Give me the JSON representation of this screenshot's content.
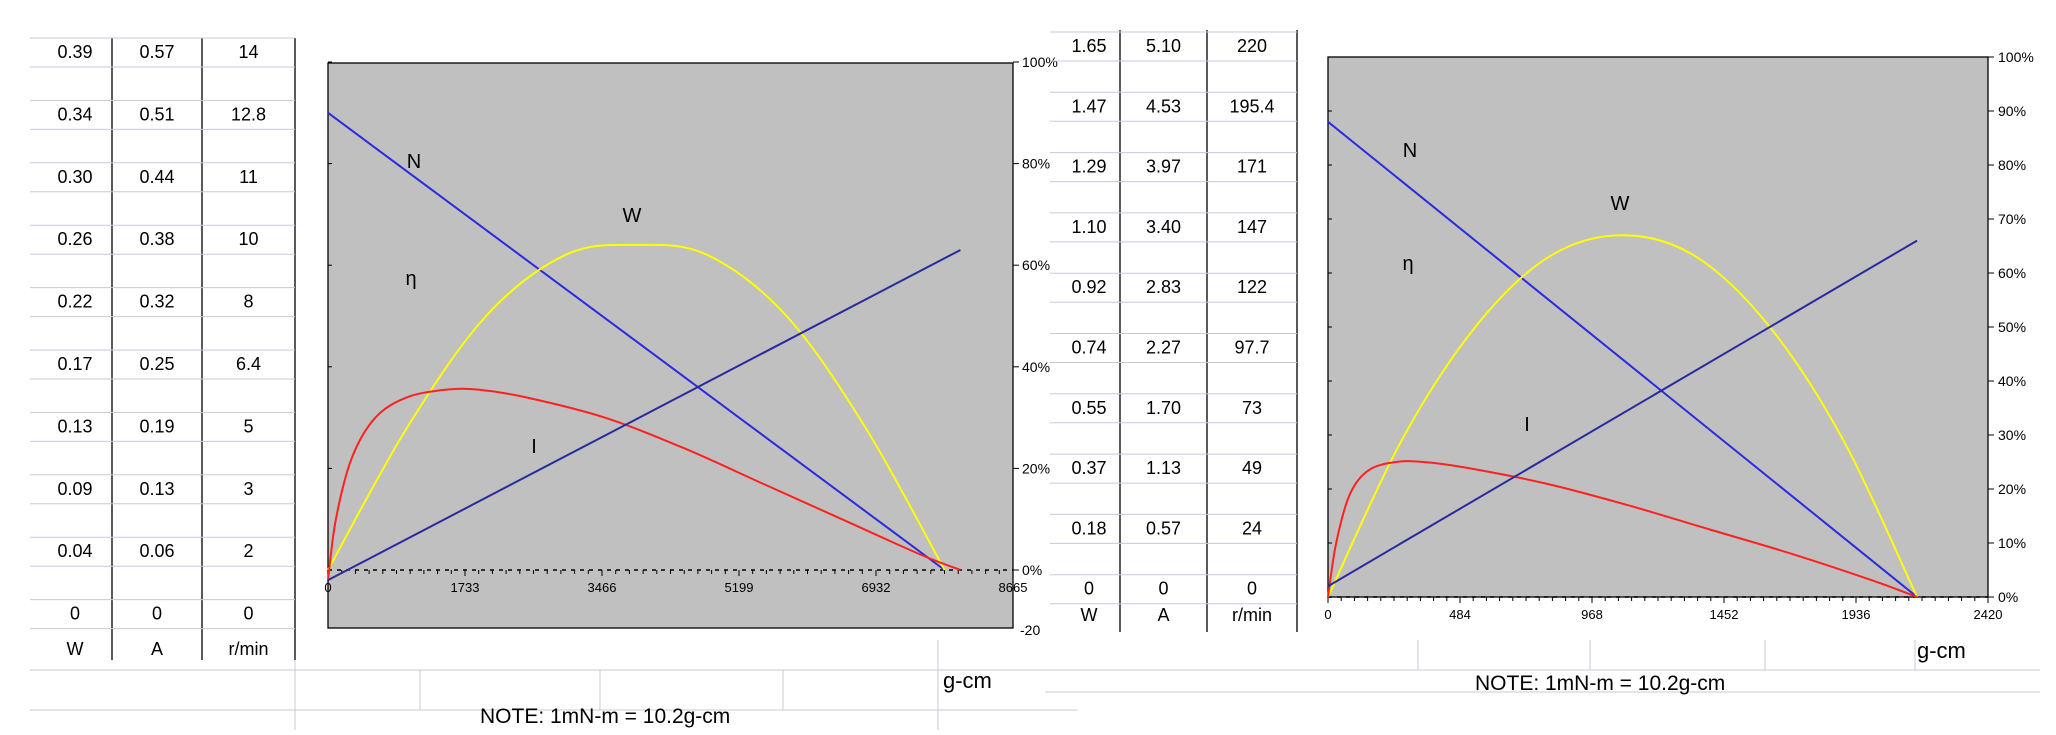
{
  "note": "NOTE: 1mN-m = 10.2g-cm",
  "chart_data": [
    {
      "type": "line",
      "table": {
        "headers": [
          "W",
          "A",
          "r/min"
        ],
        "rows": [
          [
            "0.39",
            "0.57",
            "14"
          ],
          [
            "0.34",
            "0.51",
            "12.8"
          ],
          [
            "0.30",
            "0.44",
            "11"
          ],
          [
            "0.26",
            "0.38",
            "10"
          ],
          [
            "0.22",
            "0.32",
            "8"
          ],
          [
            "0.17",
            "0.25",
            "6.4"
          ],
          [
            "0.13",
            "0.19",
            "5"
          ],
          [
            "0.09",
            "0.13",
            "3"
          ],
          [
            "0.04",
            "0.06",
            "2"
          ],
          [
            "0",
            "0",
            "0"
          ]
        ]
      },
      "x_ticks": [
        "0",
        "1733",
        "3466",
        "5199",
        "6932",
        "8665"
      ],
      "y_right_ticks": [
        "0%",
        "20%",
        "40%",
        "60%",
        "80%",
        "100%"
      ],
      "y_axis_extra_label": "-20",
      "xlabel": "g-cm",
      "xlim": [
        0,
        8665
      ],
      "ylim_percent": [
        -20,
        100
      ],
      "curve_labels": {
        "N": "N",
        "W": "W",
        "eta": "η",
        "I": "I"
      },
      "series": [
        {
          "name": "N",
          "color": "#2a2adf",
          "x": [
            0,
            7800
          ],
          "y": [
            90,
            0
          ]
        },
        {
          "name": "W",
          "color": "#ffff00",
          "x": [
            0,
            1000,
            2000,
            3000,
            3900,
            4800,
            5800,
            6800,
            7800
          ],
          "y": [
            0,
            28,
            50,
            62,
            64,
            62,
            50,
            28,
            0
          ]
        },
        {
          "name": "η",
          "color": "#ff2020",
          "x": [
            0,
            100,
            300,
            600,
            1000,
            1500,
            1900,
            2500,
            3500,
            4500,
            5500,
            6500,
            7500,
            8000
          ],
          "y": [
            -2,
            10,
            22,
            30,
            34,
            35.5,
            35.5,
            34,
            30,
            24,
            17,
            10,
            3,
            0
          ]
        },
        {
          "name": "I",
          "color": "#2a2a9f",
          "x": [
            0,
            8000
          ],
          "y": [
            -2,
            63
          ]
        }
      ]
    },
    {
      "type": "line",
      "table": {
        "headers": [
          "W",
          "A",
          "r/min"
        ],
        "rows": [
          [
            "1.65",
            "5.10",
            "220"
          ],
          [
            "1.47",
            "4.53",
            "195.4"
          ],
          [
            "1.29",
            "3.97",
            "171"
          ],
          [
            "1.10",
            "3.40",
            "147"
          ],
          [
            "0.92",
            "2.83",
            "122"
          ],
          [
            "0.74",
            "2.27",
            "97.7"
          ],
          [
            "0.55",
            "1.70",
            "73"
          ],
          [
            "0.37",
            "1.13",
            "49"
          ],
          [
            "0.18",
            "0.57",
            "24"
          ],
          [
            "0",
            "0",
            "0"
          ]
        ]
      },
      "x_ticks": [
        "0",
        "484",
        "968",
        "1452",
        "1936",
        "2420"
      ],
      "y_right_ticks": [
        "0%",
        "10%",
        "20%",
        "30%",
        "40%",
        "50%",
        "60%",
        "70%",
        "80%",
        "90%",
        "100%"
      ],
      "xlabel": "g-cm",
      "xlim": [
        0,
        2420
      ],
      "ylim_percent": [
        0,
        100
      ],
      "curve_labels": {
        "N": "N",
        "W": "W",
        "eta": "η",
        "I": "I"
      },
      "series": [
        {
          "name": "N",
          "color": "#2a2adf",
          "x": [
            0,
            2160
          ],
          "y": [
            88,
            0
          ]
        },
        {
          "name": "W",
          "color": "#ffff00",
          "x": [
            0,
            270,
            540,
            810,
            1080,
            1350,
            1620,
            1890,
            2160
          ],
          "y": [
            0,
            29,
            50,
            63,
            67,
            63,
            50,
            29,
            0
          ]
        },
        {
          "name": "η",
          "color": "#ff2020",
          "x": [
            0,
            30,
            80,
            150,
            250,
            350,
            500,
            800,
            1100,
            1400,
            1700,
            2000,
            2160
          ],
          "y": [
            0,
            10,
            19,
            23.5,
            25,
            25,
            24,
            21,
            17,
            12.5,
            8,
            3,
            0
          ]
        },
        {
          "name": "I",
          "color": "#2a2a9f",
          "x": [
            0,
            2160
          ],
          "y": [
            2,
            66
          ]
        }
      ]
    }
  ]
}
